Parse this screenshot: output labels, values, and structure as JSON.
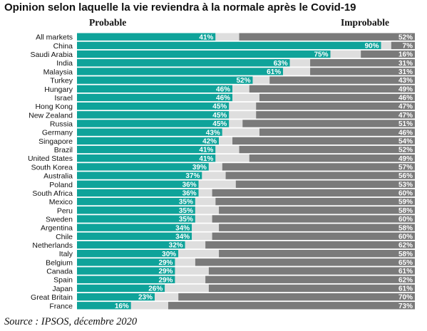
{
  "title": "Opinion selon laquelle la vie reviendra à la normale après le Covid-19",
  "source": "Source : IPSOS, décembre 2020",
  "colors": {
    "probable": "#0fa39a",
    "neutral": "#dedede",
    "improbable": "#7a7a7a"
  },
  "chart_data": {
    "type": "bar",
    "orientation": "horizontal",
    "stacked": true,
    "legend_placement": "top",
    "value_suffix": "%",
    "categories": [
      "All markets",
      "China",
      "Saudi Arabia",
      "India",
      "Malaysia",
      "Turkey",
      "Hungary",
      "Israel",
      "Hong Kong",
      "New Zealand",
      "Russia",
      "Germany",
      "Singapore",
      "Brazil",
      "United States",
      "South Korea",
      "Australia",
      "Poland",
      "South Africa",
      "Mexico",
      "Peru",
      "Sweden",
      "Argentina",
      "Chile",
      "Netherlands",
      "Italy",
      "Belgium",
      "Canada",
      "Spain",
      "Japan",
      "Great Britain",
      "France"
    ],
    "series": [
      {
        "name": "Probable",
        "values": [
          41,
          90,
          75,
          63,
          61,
          52,
          46,
          46,
          45,
          45,
          45,
          43,
          42,
          41,
          41,
          39,
          37,
          36,
          36,
          35,
          35,
          35,
          34,
          34,
          32,
          30,
          29,
          29,
          29,
          26,
          23,
          16
        ]
      },
      {
        "name": "Improbable",
        "values": [
          52,
          7,
          16,
          31,
          31,
          43,
          49,
          46,
          47,
          47,
          51,
          46,
          54,
          52,
          49,
          57,
          56,
          53,
          60,
          59,
          58,
          60,
          58,
          60,
          62,
          58,
          65,
          61,
          62,
          61,
          70,
          73
        ]
      }
    ],
    "xlim": [
      0,
      100
    ]
  }
}
